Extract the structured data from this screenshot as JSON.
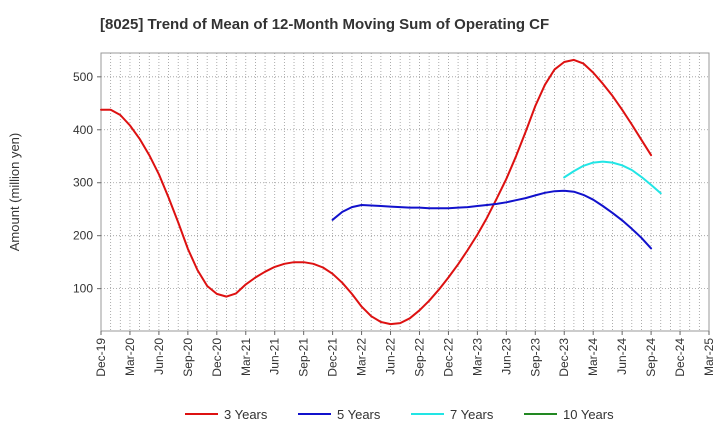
{
  "chart_data": {
    "type": "line",
    "title": "[8025]  Trend of Mean of 12-Month Moving Sum of Operating CF",
    "xlabel": "",
    "ylabel": "Amount (million yen)",
    "ylim": [
      20,
      545
    ],
    "yticks": [
      100,
      200,
      300,
      400,
      500
    ],
    "grid": true,
    "legend_position": "bottom",
    "x_tick_labels": [
      "Dec-19",
      "Mar-20",
      "Jun-20",
      "Sep-20",
      "Dec-20",
      "Mar-21",
      "Jun-21",
      "Sep-21",
      "Dec-21",
      "Mar-22",
      "Jun-22",
      "Sep-22",
      "Dec-22",
      "Mar-23",
      "Jun-23",
      "Sep-23",
      "Dec-23",
      "Mar-24",
      "Jun-24",
      "Sep-24",
      "Dec-24",
      "Mar-25"
    ],
    "series": [
      {
        "name": "3 Years",
        "color": "#dd1111",
        "start_index": 0,
        "values": [
          438,
          438,
          428,
          408,
          383,
          352,
          316,
          272,
          225,
          175,
          135,
          105,
          90,
          85,
          91,
          108,
          121,
          132,
          141,
          147,
          150,
          150,
          147,
          140,
          128,
          111,
          90,
          66,
          48,
          37,
          33,
          35,
          44,
          59,
          77,
          98,
          121,
          146,
          173,
          202,
          234,
          270,
          307,
          350,
          396,
          445,
          485,
          514,
          528,
          532,
          525,
          508,
          487,
          464,
          438,
          410,
          381,
          352
        ]
      },
      {
        "name": "5 Years",
        "color": "#1111cc",
        "start_index": 24,
        "values": [
          230,
          245,
          254,
          258,
          257,
          256,
          255,
          254,
          253,
          253,
          252,
          252,
          252,
          253,
          254,
          256,
          258,
          260,
          263,
          267,
          271,
          276,
          281,
          284,
          285,
          283,
          277,
          268,
          256,
          243,
          229,
          213,
          196,
          176
        ]
      },
      {
        "name": "7 Years",
        "color": "#22e5e5",
        "start_index": 48,
        "values": [
          310,
          322,
          332,
          338,
          340,
          338,
          333,
          324,
          311,
          296,
          280
        ]
      },
      {
        "name": "10 Years",
        "color": "#228822",
        "start_index": 0,
        "values": []
      }
    ]
  }
}
